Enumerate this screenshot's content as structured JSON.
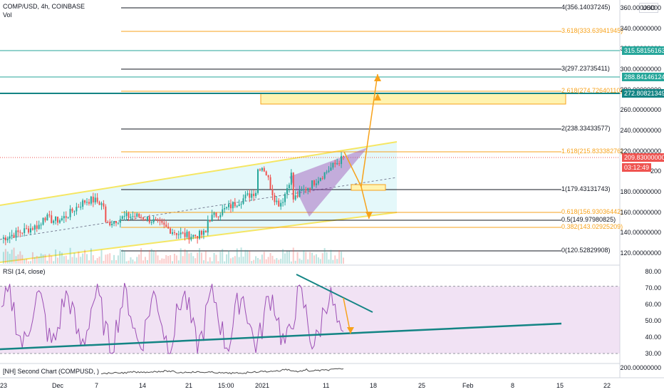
{
  "header": {
    "symbol_line": "COMP/USD, 4h, COINBASE",
    "volume_label": "Vol",
    "currency_badge": "USD"
  },
  "fib_levels": [
    {
      "label": "4(356.14037245)",
      "price": 356.14,
      "color": "#131722"
    },
    {
      "label": "3.618(333.63941945)",
      "price": 333.64,
      "color": "#f7a21b"
    },
    {
      "label": "3(297.23735411)",
      "price": 297.24,
      "color": "#131722"
    },
    {
      "label": "2.618(274.72640110)",
      "price": 274.73,
      "color": "#f7a21b"
    },
    {
      "label": "2(238.33433577)",
      "price": 238.33,
      "color": "#131722"
    },
    {
      "label": "1.618(215.83338276)",
      "price": 215.83,
      "color": "#f7a21b"
    },
    {
      "label": "1(179.43131743)",
      "price": 179.43,
      "color": "#131722"
    },
    {
      "label": "0.618(156.93036442)",
      "price": 156.93,
      "color": "#f7a21b"
    },
    {
      "label": "0.5(149.97980825)",
      "price": 149.98,
      "color": "#131722"
    },
    {
      "label": "0.382(143.02925209)",
      "price": 143.03,
      "color": "#f7a21b"
    },
    {
      "label": "0(120.52829908)",
      "price": 120.53,
      "color": "#131722"
    }
  ],
  "price_axis": {
    "ticks": [
      "360.00000000",
      "340.00000000",
      "320.00000000",
      "300.00000000",
      "280.00000000",
      "260.00000000",
      "240.00000000",
      "220.00000000",
      "200",
      "180.00000000",
      "160.00000000",
      "140.00000000",
      "120.00000000"
    ],
    "tags": [
      {
        "text": "315.58156163",
        "color": "#26a69a"
      },
      {
        "text": "288.84146124",
        "color": "#26a69a"
      },
      {
        "text": "272.80821349",
        "color": "#138484"
      },
      {
        "text": "209.83000000",
        "color": "#ef5350"
      },
      {
        "text": "03:12:49",
        "color": "#ef5350"
      }
    ]
  },
  "rsi": {
    "legend": "RSI (14, close)",
    "ticks": [
      "80.00",
      "70.00",
      "60.00",
      "50.00",
      "40.00",
      "30.00"
    ]
  },
  "second_chart": {
    "legend": "[NH] Second Chart (COMPUSD, )",
    "tick": "200.00000000"
  },
  "time_axis": [
    "23",
    "Dec",
    "7",
    "14",
    "21",
    "15:00",
    "2021",
    "11",
    "18",
    "25",
    "Feb",
    "8",
    "15",
    "22"
  ],
  "colors": {
    "channel": "#f5e663",
    "fib_orange": "#f7a21b",
    "teal": "#138484",
    "up": "#26a69a",
    "down": "#ef5350",
    "rsi_line": "#9c4fb5",
    "arrow": "#f7a21b"
  }
}
